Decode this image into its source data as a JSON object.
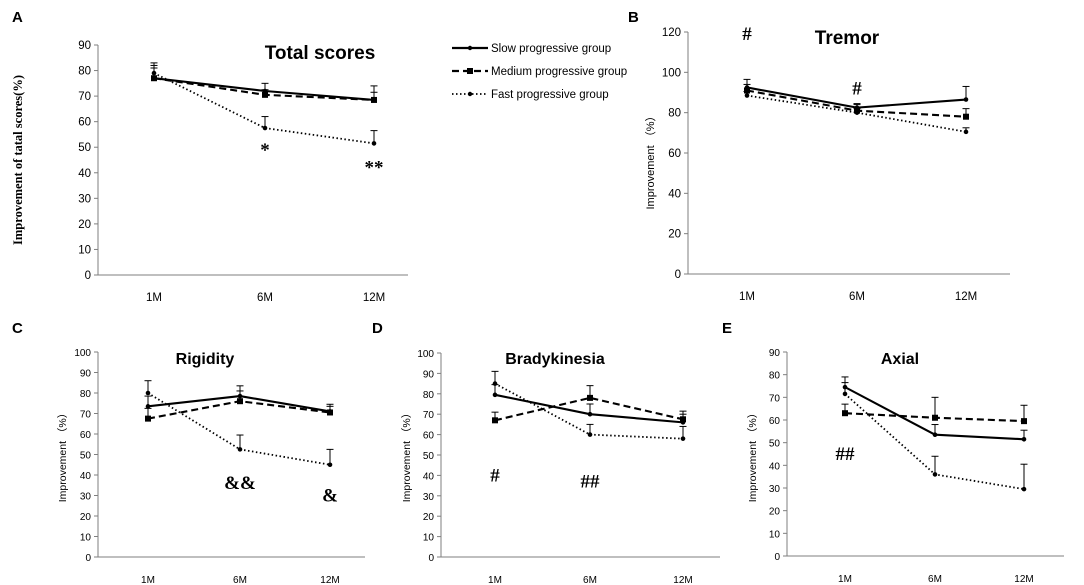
{
  "legend": {
    "slow": "Slow progressive group",
    "medium": "Medium progressive group",
    "fast": "Fast progressive group"
  },
  "chart_data": [
    {
      "id": "A",
      "panel_letter": "A",
      "type": "line",
      "title": "Total scores",
      "ylabel": "Improvement of tatal scores(%)",
      "xlabel": "",
      "categories": [
        "1M",
        "6M",
        "12M"
      ],
      "ylim": [
        0,
        90
      ],
      "ystep": 10,
      "series": [
        {
          "name": "Slow progressive group",
          "style": "slow",
          "values": [
            77,
            72,
            68.5
          ],
          "errors": [
            5,
            3,
            5.5
          ]
        },
        {
          "name": "Medium progressive group",
          "style": "medium",
          "values": [
            77,
            70.5,
            68.5
          ],
          "errors": [
            4,
            2,
            3
          ]
        },
        {
          "name": "Fast progressive group",
          "style": "fast",
          "values": [
            79,
            57.5,
            51.5
          ],
          "errors": [
            4,
            4.5,
            5
          ]
        }
      ],
      "annotations": [
        {
          "text": "*",
          "x": "6M",
          "y": 49
        },
        {
          "text": "**",
          "x": "12M",
          "y": 42
        }
      ]
    },
    {
      "id": "B",
      "panel_letter": "B",
      "type": "line",
      "title": "Tremor",
      "ylabel": "Improvement （%）",
      "xlabel": "",
      "categories": [
        "1M",
        "6M",
        "12M"
      ],
      "ylim": [
        0,
        120
      ],
      "ystep": 20,
      "series": [
        {
          "name": "Slow progressive group",
          "style": "slow",
          "values": [
            92.5,
            82.5,
            86.5
          ],
          "errors": [
            4,
            2,
            6.5
          ]
        },
        {
          "name": "Medium progressive group",
          "style": "medium",
          "values": [
            91,
            81,
            78
          ],
          "errors": [
            3,
            3,
            4
          ]
        },
        {
          "name": "Fast progressive group",
          "style": "fast",
          "values": [
            88.5,
            80,
            70.5
          ],
          "errors": [
            2,
            2,
            2
          ]
        }
      ],
      "annotations": [
        {
          "text": "#",
          "x": "1M",
          "y": 119
        },
        {
          "text": "#",
          "x": "6M",
          "y": 92
        }
      ]
    },
    {
      "id": "C",
      "panel_letter": "C",
      "type": "line",
      "title": "Rigidity",
      "ylabel": "Improvement （%）",
      "xlabel": "",
      "categories": [
        "1M",
        "6M",
        "12M"
      ],
      "ylim": [
        0,
        100
      ],
      "ystep": 10,
      "series": [
        {
          "name": "Slow progressive group",
          "style": "slow",
          "values": [
            73.5,
            78.5,
            71
          ],
          "errors": [
            5,
            5,
            3.5
          ]
        },
        {
          "name": "Medium progressive group",
          "style": "medium",
          "values": [
            67.5,
            76,
            70.5
          ],
          "errors": [
            5,
            5,
            3
          ]
        },
        {
          "name": "Fast progressive group",
          "style": "fast",
          "values": [
            80,
            52.5,
            45
          ],
          "errors": [
            6,
            7,
            7.5
          ]
        }
      ],
      "annotations": [
        {
          "text": "&&",
          "x": "6M",
          "y": 36
        },
        {
          "text": "&",
          "x": "12M",
          "y": 30
        }
      ]
    },
    {
      "id": "D",
      "panel_letter": "D",
      "type": "line",
      "title": "Bradykinesia",
      "ylabel": "Improvement （%）",
      "xlabel": "",
      "categories": [
        "1M",
        "6M",
        "12M"
      ],
      "ylim": [
        0,
        100
      ],
      "ystep": 10,
      "series": [
        {
          "name": "Slow progressive group",
          "style": "slow",
          "values": [
            79.5,
            70,
            66
          ],
          "errors": [
            5,
            5,
            4
          ]
        },
        {
          "name": "Medium progressive group",
          "style": "medium",
          "values": [
            67,
            78,
            67.5
          ],
          "errors": [
            4,
            6,
            4
          ]
        },
        {
          "name": "Fast progressive group",
          "style": "fast",
          "values": [
            85,
            60,
            58
          ],
          "errors": [
            6,
            5,
            6
          ]
        }
      ],
      "annotations": [
        {
          "text": "#",
          "x": "1M",
          "y": 40
        },
        {
          "text": "##",
          "x": "6M",
          "y": 37
        }
      ]
    },
    {
      "id": "E",
      "panel_letter": "E",
      "type": "line",
      "title": "Axial",
      "ylabel": "Improvement （%）",
      "xlabel": "",
      "categories": [
        "1M",
        "6M",
        "12M"
      ],
      "ylim": [
        0,
        90
      ],
      "ystep": 10,
      "series": [
        {
          "name": "Slow progressive group",
          "style": "slow",
          "values": [
            74.5,
            53.5,
            51.5
          ],
          "errors": [
            4.5,
            4.5,
            4
          ]
        },
        {
          "name": "Medium progressive group",
          "style": "medium",
          "values": [
            63,
            61,
            59.5
          ],
          "errors": [
            4,
            9,
            7
          ]
        },
        {
          "name": "Fast progressive group",
          "style": "fast",
          "values": [
            71.5,
            36,
            29.5
          ],
          "errors": [
            5,
            8,
            11
          ]
        }
      ],
      "annotations": [
        {
          "text": "##",
          "x": "1M",
          "y": 45
        }
      ]
    }
  ]
}
